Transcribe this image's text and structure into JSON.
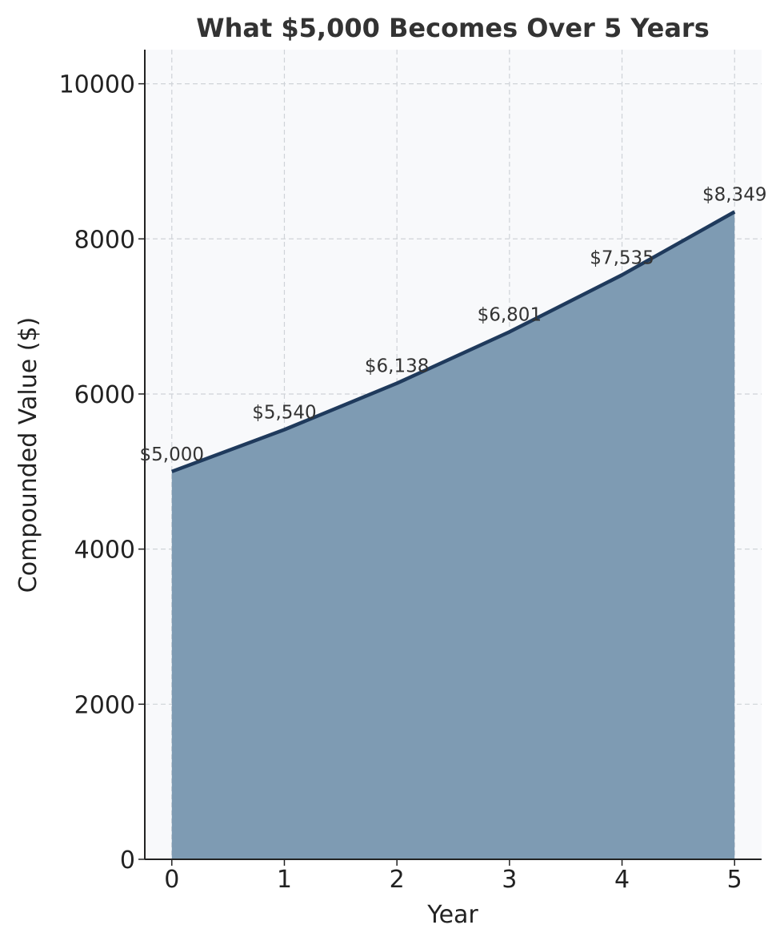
{
  "chart_data": {
    "type": "area",
    "title": "What $5,000 Becomes Over 5 Years",
    "xlabel": "Year",
    "ylabel": "Compounded Value ($)",
    "x": [
      0,
      1,
      2,
      3,
      4,
      5
    ],
    "series": [
      {
        "values": [
          5000,
          5540,
          6138,
          6801,
          7535,
          8349
        ],
        "data_labels": [
          "$5,000",
          "$5,540",
          "$6,138",
          "$6,801",
          "$7,535",
          "$8,349"
        ]
      }
    ],
    "x_ticks": [
      "0",
      "1",
      "2",
      "3",
      "4",
      "5"
    ],
    "y_ticks": [
      "0",
      "2000",
      "4000",
      "6000",
      "8000",
      "10000"
    ],
    "y_tick_values": [
      0,
      2000,
      4000,
      6000,
      8000,
      10000
    ],
    "xlim": [
      -0.24,
      5.24
    ],
    "ylim": [
      0,
      10440
    ],
    "grid": true,
    "colors": {
      "line": "#1f3a5c",
      "fill": "#7e9bb3",
      "plot_bg": "#f8f9fb"
    }
  }
}
